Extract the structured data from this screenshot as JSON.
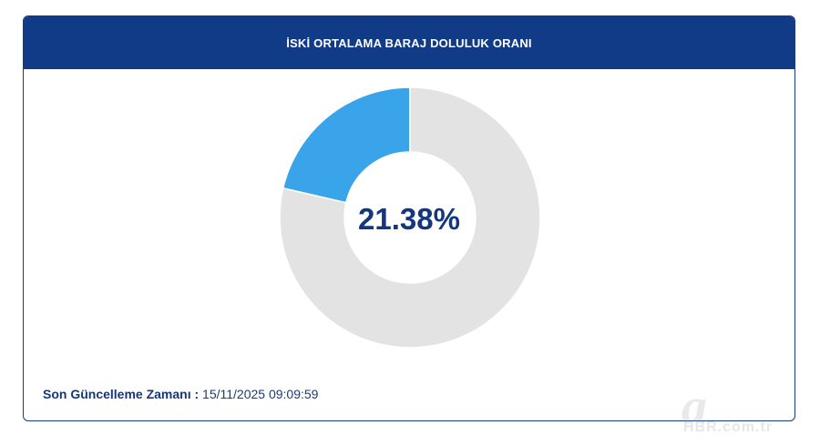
{
  "card": {
    "title": "İSKİ ORTALAMA BARAJ DOLULUK ORANI"
  },
  "chart_data": {
    "type": "pie",
    "values": [
      21.38,
      78.62
    ],
    "center_label": "21.38%",
    "colors": [
      "#3aa4ea",
      "#e3e3e3"
    ]
  },
  "footer": {
    "label": "Son Güncelleme Zamanı :",
    "value": "15/11/2025 09:09:59"
  },
  "watermark": {
    "mark": "a",
    "text": "HBR.com.tr"
  }
}
